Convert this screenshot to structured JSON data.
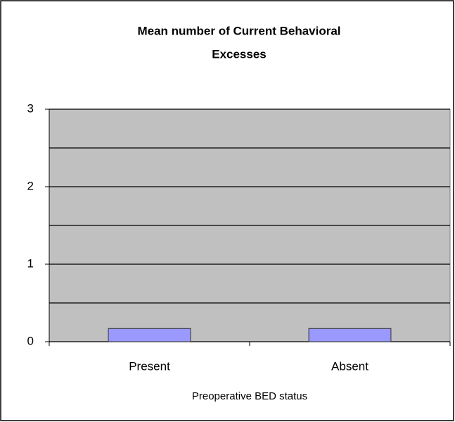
{
  "chart_data": {
    "type": "bar",
    "title": [
      "Mean number of Current Behavioral",
      "Excesses"
    ],
    "x_label": "Preoperative BED status",
    "categories": [
      "Present",
      "Absent"
    ],
    "values": [
      0.17,
      0.17
    ],
    "color": "#9999ff",
    "plot_background": "#c0c0c0",
    "ylim": [
      0,
      3
    ],
    "yticks": [
      0,
      1,
      2,
      3
    ],
    "minor_yticks": [
      0.5,
      1.5,
      2.5
    ],
    "grid": true
  }
}
